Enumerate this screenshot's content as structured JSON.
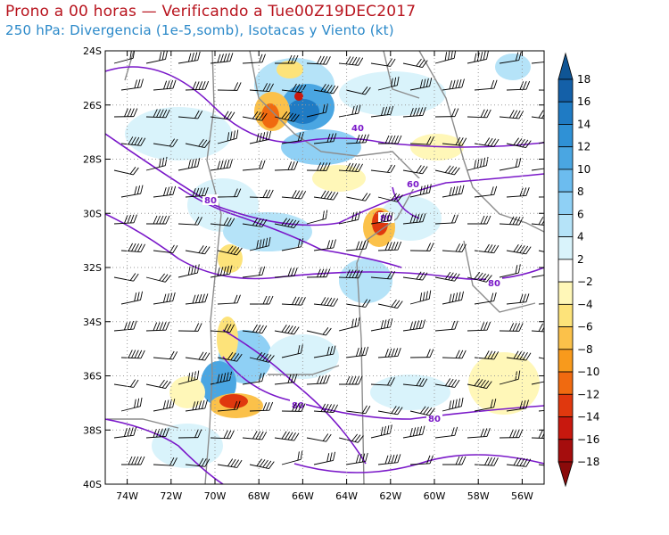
{
  "title": {
    "line1": "Prono a 00 horas — Verificando a Tue00Z19DEC2017",
    "line2": "250 hPa: Divergencia (1e-5,somb), Isotacas y Viento (kt)"
  },
  "map": {
    "lon_range": [
      -75,
      -55
    ],
    "lat_range": [
      -40,
      -24
    ],
    "lon_ticks": [
      "74W",
      "72W",
      "70W",
      "68W",
      "66W",
      "64W",
      "62W",
      "60W",
      "58W",
      "56W"
    ],
    "lat_ticks": [
      "24S",
      "26S",
      "28S",
      "30S",
      "32S",
      "34S",
      "36S",
      "38S",
      "40S"
    ],
    "grid": true
  },
  "isotach_labels": [
    "40",
    "60",
    "80",
    "80",
    "80",
    "80",
    "80"
  ],
  "colorbar": {
    "levels": [
      "18",
      "16",
      "14",
      "12",
      "10",
      "8",
      "6",
      "4",
      "2",
      "−2",
      "−4",
      "−6",
      "−8",
      "−10",
      "−12",
      "−14",
      "−16",
      "−18"
    ],
    "colors": [
      "#1460a8",
      "#1f7bc4",
      "#2f91d6",
      "#4aa6e2",
      "#6cbcef",
      "#8fd0f5",
      "#b5e3f8",
      "#d9f3fb",
      "#ffffff",
      "#fff7b8",
      "#fde37a",
      "#fbc14a",
      "#f89a1c",
      "#f06a10",
      "#e0380e",
      "#c8180e",
      "#a50d0d"
    ],
    "top_color": "#0f5595",
    "bottom_color": "#8a0a0a"
  },
  "colors": {
    "isotach": "#7a18c9",
    "border": "#8c8c8c",
    "barb": "#000000"
  }
}
